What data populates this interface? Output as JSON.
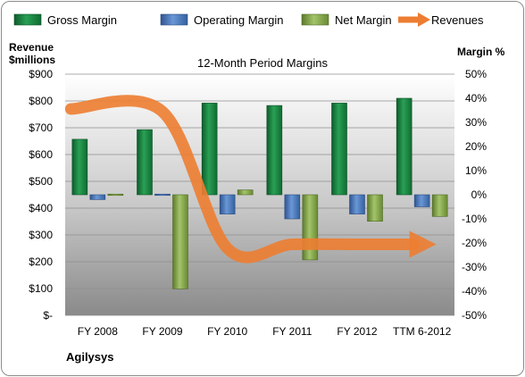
{
  "chart_data": {
    "type": "bar",
    "title": "12-Month Period Margins",
    "categories": [
      "FY 2008",
      "FY 2009",
      "FY 2010",
      "FY 2011",
      "FY 2012",
      "TTM 6-2012"
    ],
    "left_axis": {
      "label_line1": "Revenue",
      "label_line2": "$millions",
      "ylim": [
        0,
        900
      ],
      "ticks": [
        0,
        100,
        200,
        300,
        400,
        500,
        600,
        700,
        800,
        900
      ],
      "tick_labels": [
        "$-",
        "$100",
        "$200",
        "$300",
        "$400",
        "$500",
        "$600",
        "$700",
        "$800",
        "$900"
      ]
    },
    "right_axis": {
      "label": "Margin %",
      "ylim": [
        -50,
        50
      ],
      "ticks": [
        -50,
        -40,
        -30,
        -20,
        -10,
        0,
        10,
        20,
        30,
        40,
        50
      ],
      "tick_labels": [
        "-50%",
        "-40%",
        "-30%",
        "-20%",
        "-10%",
        "0%",
        "10%",
        "20%",
        "30%",
        "40%",
        "50%"
      ]
    },
    "series": [
      {
        "name": "Gross Margin",
        "type": "bar",
        "axis": "right",
        "color": "#1e8a45",
        "values": [
          23,
          27,
          38,
          37,
          38,
          40
        ]
      },
      {
        "name": "Operating Margin",
        "type": "bar",
        "axis": "right",
        "color": "#4f7ec4",
        "values": [
          -2,
          0,
          -8,
          -10,
          -8,
          -5
        ]
      },
      {
        "name": "Net Margin",
        "type": "bar",
        "axis": "right",
        "color": "#8bab4f",
        "values": [
          0,
          -39,
          2,
          -27,
          -11,
          -9
        ]
      },
      {
        "name": "Revenues",
        "type": "line",
        "axis": "left",
        "color": "#ed7d31",
        "values": [
          770,
          760,
          250,
          265,
          265,
          265
        ]
      }
    ],
    "legend_position": "top",
    "plot_background": "gradient-gray",
    "grid": true
  },
  "footer": {
    "company": "Agilysys"
  }
}
